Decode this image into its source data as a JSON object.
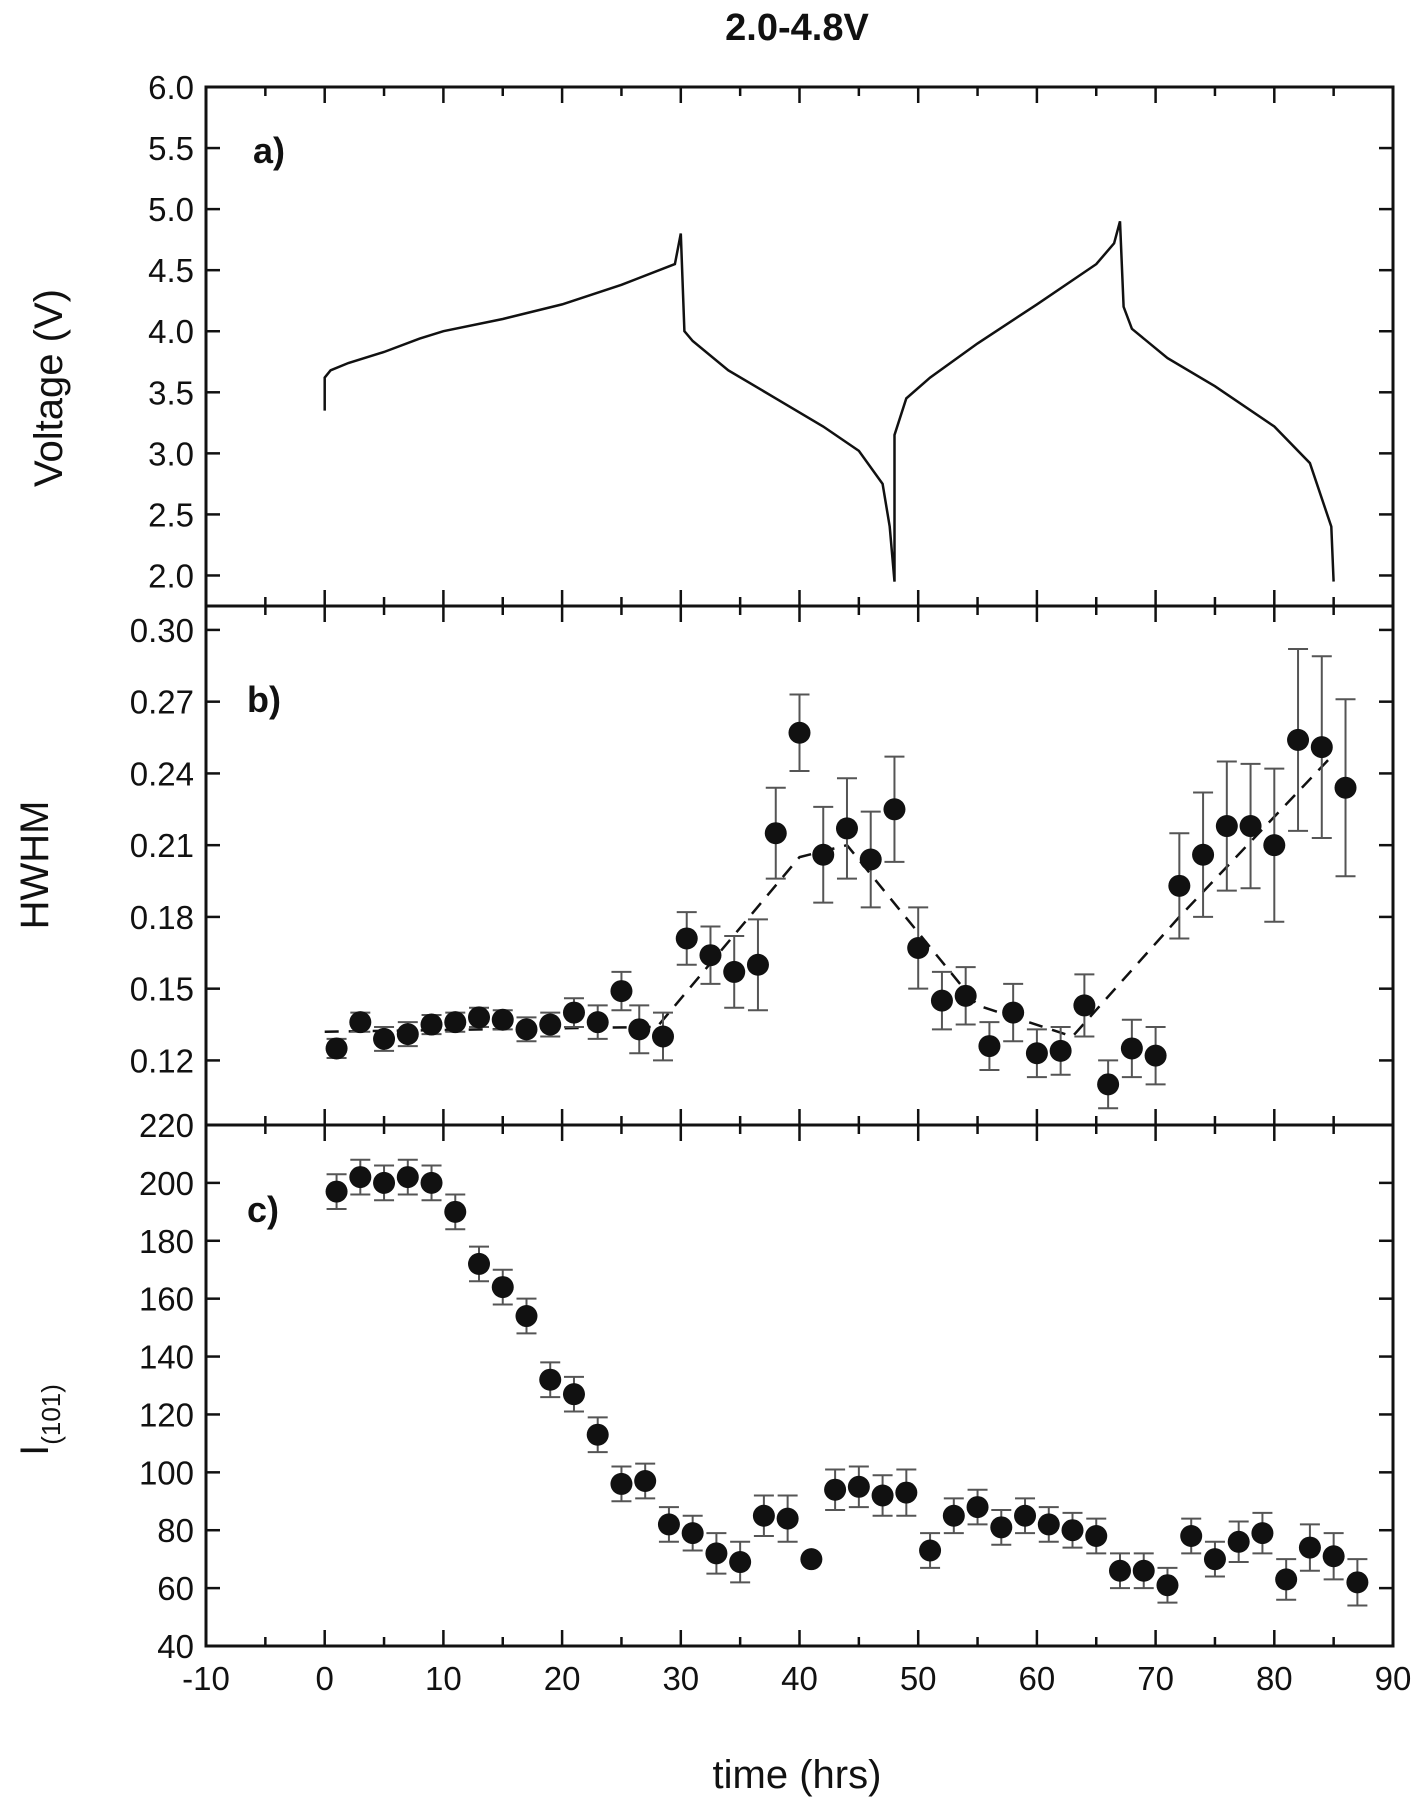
{
  "chart_data": {
    "type": "multi-panel",
    "title": "2.0-4.8V",
    "xlabel": "time (hrs)",
    "xlim": [
      -10,
      90
    ],
    "x_ticks": [
      -10,
      0,
      10,
      20,
      30,
      40,
      50,
      60,
      70,
      80,
      90
    ],
    "grid": false,
    "panels": [
      {
        "id": "a",
        "label": "a)",
        "type": "line",
        "ylabel": "Voltage (V)",
        "ylim": [
          1.75,
          6.0
        ],
        "y_ticks": [
          2.0,
          2.5,
          3.0,
          3.5,
          4.0,
          4.5,
          5.0,
          5.5,
          6.0
        ],
        "y_tick_labels": [
          "2.0",
          "2.5",
          "3.0",
          "3.5",
          "4.0",
          "4.5",
          "5.0",
          "5.5",
          "6.0"
        ],
        "x": [
          0,
          0,
          0.5,
          2,
          5,
          8,
          10,
          15,
          20,
          25,
          29.5,
          30,
          30.3,
          31,
          34,
          38,
          42,
          45,
          47,
          47.6,
          48,
          48,
          49,
          51,
          55,
          60,
          65,
          66.5,
          67,
          67.3,
          68,
          71,
          75,
          80,
          83,
          84.8,
          85
        ],
        "y": [
          3.35,
          3.62,
          3.68,
          3.74,
          3.83,
          3.94,
          4.0,
          4.1,
          4.22,
          4.38,
          4.55,
          4.8,
          4.0,
          3.92,
          3.68,
          3.45,
          3.22,
          3.02,
          2.75,
          2.4,
          1.95,
          3.15,
          3.45,
          3.62,
          3.9,
          4.22,
          4.55,
          4.72,
          4.9,
          4.2,
          4.02,
          3.78,
          3.55,
          3.22,
          2.92,
          2.4,
          1.95
        ]
      },
      {
        "id": "b",
        "label": "b)",
        "type": "scatter",
        "ylabel": "HWHM",
        "ylim": [
          0.093,
          0.31
        ],
        "y_ticks": [
          0.12,
          0.15,
          0.18,
          0.21,
          0.24,
          0.27,
          0.3
        ],
        "y_tick_labels": [
          "0.12",
          "0.15",
          "0.18",
          "0.21",
          "0.24",
          "0.27",
          "0.30"
        ],
        "x": [
          1,
          3,
          5,
          7,
          9,
          11,
          13,
          15,
          17,
          19,
          21,
          23,
          25,
          26.5,
          28.5,
          30.5,
          32.5,
          34.5,
          36.5,
          38,
          40,
          42,
          44,
          46,
          48,
          50,
          52,
          54,
          56,
          58,
          60,
          62,
          64,
          66,
          68,
          70,
          72,
          74,
          76,
          78,
          80,
          82,
          84,
          86
        ],
        "y": [
          0.125,
          0.136,
          0.129,
          0.131,
          0.135,
          0.136,
          0.138,
          0.137,
          0.133,
          0.135,
          0.14,
          0.136,
          0.149,
          0.133,
          0.13,
          0.171,
          0.164,
          0.157,
          0.16,
          0.215,
          0.257,
          0.206,
          0.217,
          0.204,
          0.225,
          0.167,
          0.145,
          0.147,
          0.126,
          0.14,
          0.123,
          0.124,
          0.143,
          0.11,
          0.125,
          0.122,
          0.193,
          0.206,
          0.218,
          0.218,
          0.21,
          0.254,
          0.251,
          0.234
        ],
        "yerr": [
          0.004,
          0.004,
          0.005,
          0.005,
          0.004,
          0.004,
          0.004,
          0.004,
          0.005,
          0.005,
          0.006,
          0.007,
          0.008,
          0.01,
          0.01,
          0.011,
          0.012,
          0.015,
          0.019,
          0.019,
          0.016,
          0.02,
          0.021,
          0.02,
          0.022,
          0.017,
          0.012,
          0.012,
          0.01,
          0.012,
          0.01,
          0.01,
          0.013,
          0.01,
          0.012,
          0.012,
          0.022,
          0.026,
          0.027,
          0.026,
          0.032,
          0.038,
          0.038,
          0.037
        ],
        "trend_x": [
          0,
          28,
          40,
          44,
          55,
          63,
          72,
          85
        ],
        "trend_y": [
          0.132,
          0.134,
          0.205,
          0.21,
          0.143,
          0.13,
          0.18,
          0.248
        ]
      },
      {
        "id": "c",
        "label": "c)",
        "type": "scatter",
        "ylabel": "I",
        "ylabel_subscript": "(101)",
        "ylim": [
          40,
          220
        ],
        "y_ticks": [
          40,
          60,
          80,
          100,
          120,
          140,
          160,
          180,
          200,
          220
        ],
        "y_tick_labels": [
          "40",
          "60",
          "80",
          "100",
          "120",
          "140",
          "160",
          "180",
          "200",
          "220"
        ],
        "x": [
          1,
          3,
          5,
          7,
          9,
          11,
          13,
          15,
          17,
          19,
          21,
          23,
          25,
          27,
          29,
          31,
          33,
          35,
          37,
          39,
          41,
          43,
          45,
          47,
          49,
          51,
          53,
          55,
          57,
          59,
          61,
          63,
          65,
          67,
          69,
          71,
          73,
          75,
          77,
          79,
          81,
          83,
          85,
          87
        ],
        "y": [
          197,
          202,
          200,
          202,
          200,
          190,
          172,
          164,
          154,
          132,
          127,
          113,
          96,
          97,
          82,
          79,
          72,
          69,
          85,
          84,
          70,
          94,
          95,
          92,
          93,
          73,
          85,
          88,
          81,
          85,
          82,
          80,
          78,
          66,
          66,
          61,
          78,
          70,
          76,
          79,
          63,
          74,
          71,
          62
        ],
        "yerr": [
          6,
          6,
          6,
          6,
          6,
          6,
          6,
          6,
          6,
          6,
          6,
          6,
          6,
          6,
          6,
          6,
          7,
          7,
          7,
          8,
          0,
          7,
          7,
          7,
          8,
          6,
          6,
          6,
          6,
          6,
          6,
          6,
          6,
          6,
          6,
          6,
          6,
          6,
          7,
          7,
          7,
          8,
          8,
          8
        ]
      }
    ]
  }
}
